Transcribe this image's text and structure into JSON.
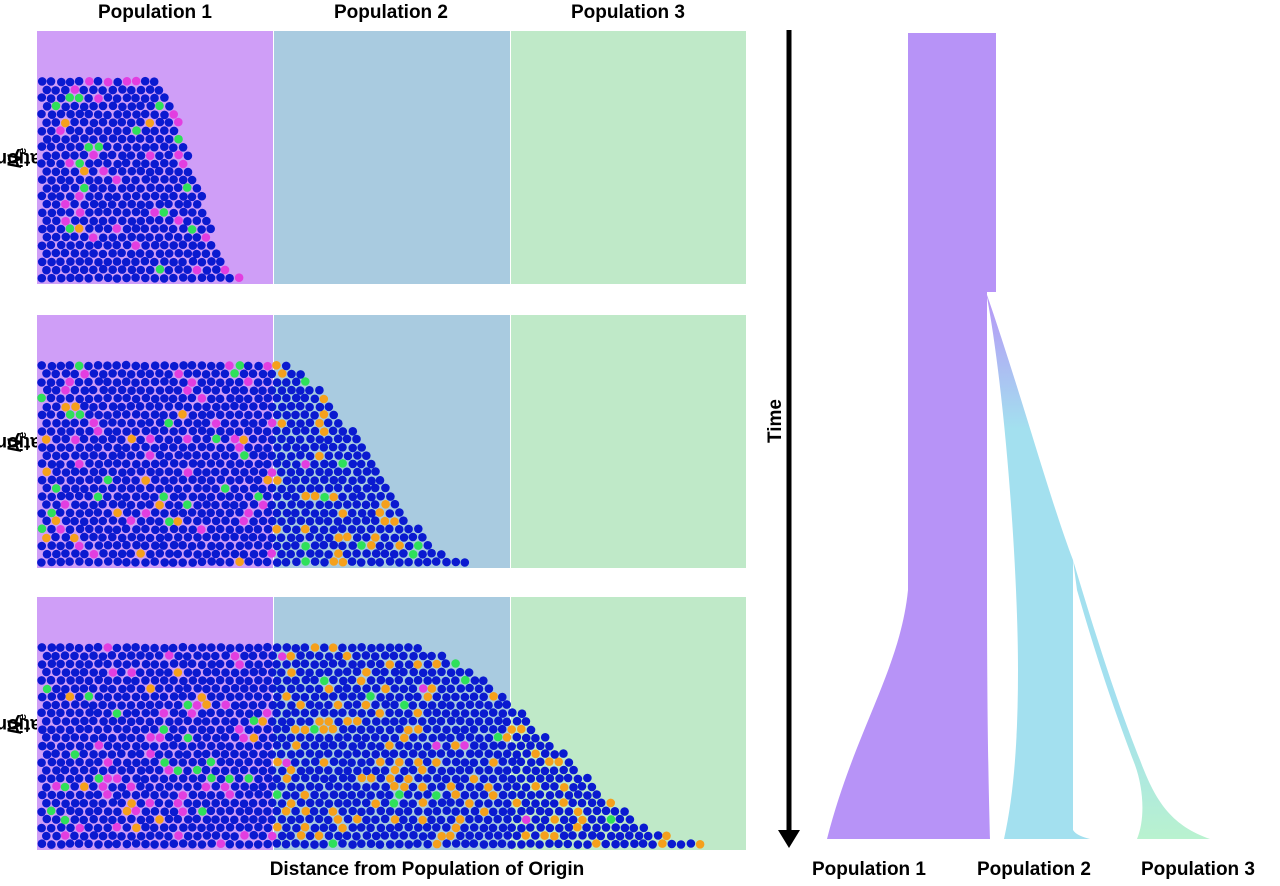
{
  "column_labels": [
    "Population 1",
    "Population 2",
    "Population 3"
  ],
  "y_axis_label": "Population Size (",
  "y_axis_symbol": "N",
  "y_axis_subscript": "e",
  "y_axis_close": ")",
  "x_axis_label": "Distance from Population of Origin",
  "time_axis_label": "Time",
  "tree_labels": [
    "Population 1",
    "Population 2",
    "Population 3"
  ],
  "colors": {
    "population_1": "#cf9ef7",
    "population_2": "#a9cbe0",
    "population_3": "#bfe9c8",
    "individual": "#0a1ad0",
    "allele_magenta": "#e23ee0",
    "allele_green": "#2ee05a",
    "allele_orange": "#f5a01c",
    "tree_population_1": "#b793f7",
    "tree_population_2": "#a3e0ef",
    "tree_population_3": "#b9f2cf"
  },
  "panels": [
    {
      "stage": 1,
      "front_extent": 0.29
    },
    {
      "stage": 2,
      "front_extent": 0.61
    },
    {
      "stage": 3,
      "front_extent": 0.94
    }
  ]
}
